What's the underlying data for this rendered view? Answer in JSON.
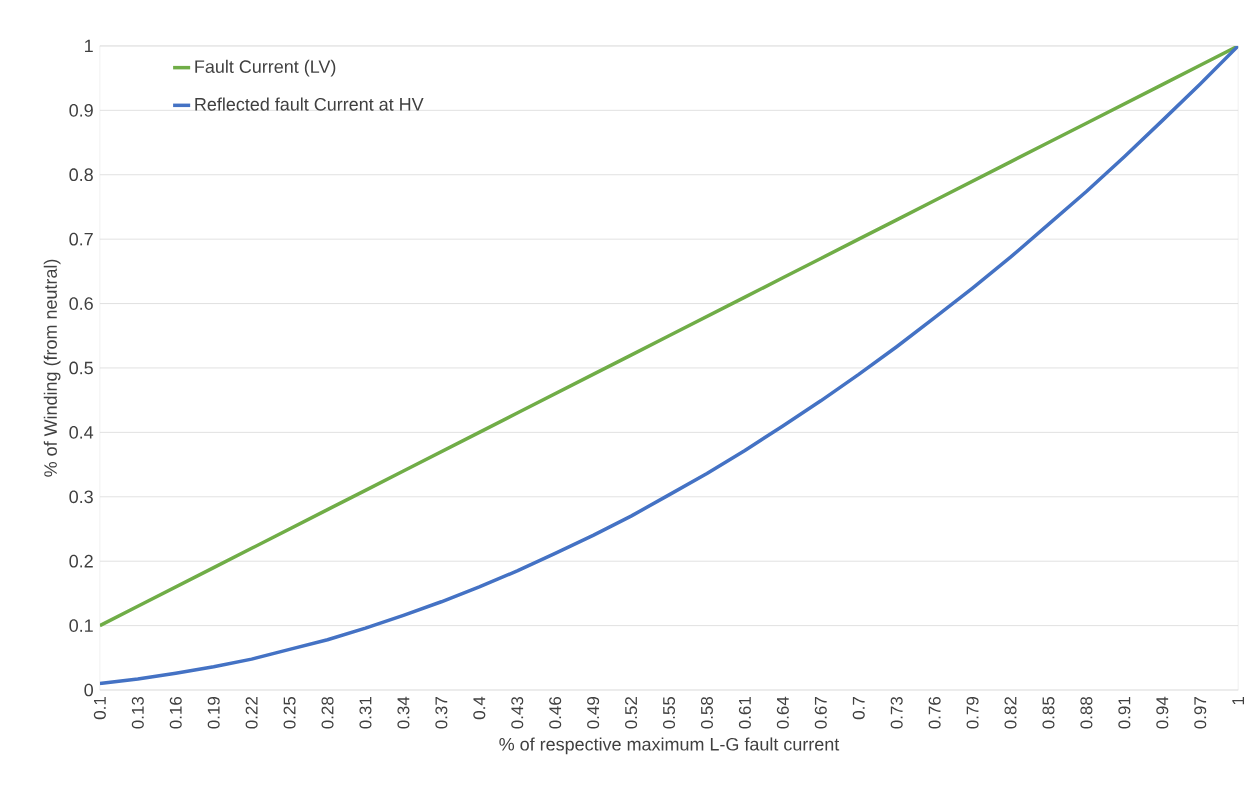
{
  "chart_data": {
    "type": "line",
    "xlabel": "% of respective maximum L-G fault current",
    "ylabel": "% of Winding (from neutral)",
    "x": [
      0.1,
      0.13,
      0.16,
      0.19,
      0.22,
      0.25,
      0.28,
      0.31,
      0.34,
      0.37,
      0.4,
      0.43,
      0.46,
      0.49,
      0.52,
      0.55,
      0.58,
      0.61,
      0.64,
      0.67,
      0.7,
      0.73,
      0.76,
      0.79,
      0.82,
      0.85,
      0.88,
      0.91,
      0.94,
      0.97,
      1
    ],
    "series": [
      {
        "name": "Fault Current (LV)",
        "color": "#70ad47",
        "values": [
          0.1,
          0.13,
          0.16,
          0.19,
          0.22,
          0.25,
          0.28,
          0.31,
          0.34,
          0.37,
          0.4,
          0.43,
          0.46,
          0.49,
          0.52,
          0.55,
          0.58,
          0.61,
          0.64,
          0.67,
          0.7,
          0.73,
          0.76,
          0.79,
          0.82,
          0.85,
          0.88,
          0.91,
          0.94,
          0.97,
          1
        ]
      },
      {
        "name": "Reflected fault Current at HV",
        "color": "#4472c4",
        "values": [
          0.01,
          0.017,
          0.026,
          0.036,
          0.048,
          0.063,
          0.078,
          0.096,
          0.116,
          0.137,
          0.16,
          0.185,
          0.212,
          0.24,
          0.27,
          0.303,
          0.336,
          0.372,
          0.41,
          0.449,
          0.49,
          0.533,
          0.578,
          0.624,
          0.672,
          0.723,
          0.774,
          0.828,
          0.884,
          0.941,
          1
        ]
      }
    ],
    "xlim": [
      0.1,
      1
    ],
    "ylim": [
      0,
      1
    ],
    "xticks": [
      0.1,
      0.13,
      0.16,
      0.19,
      0.22,
      0.25,
      0.28,
      0.31,
      0.34,
      0.37,
      0.4,
      0.43,
      0.46,
      0.49,
      0.52,
      0.55,
      0.58,
      0.61,
      0.64,
      0.67,
      0.7,
      0.73,
      0.76,
      0.79,
      0.82,
      0.85,
      0.88,
      0.91,
      0.94,
      0.97,
      1
    ],
    "yticks": [
      0,
      0.1,
      0.2,
      0.3,
      0.4,
      0.5,
      0.6,
      0.7,
      0.8,
      0.9,
      1
    ],
    "grid": "y",
    "legend": "top left",
    "marker": "none",
    "line_style": "solid"
  }
}
